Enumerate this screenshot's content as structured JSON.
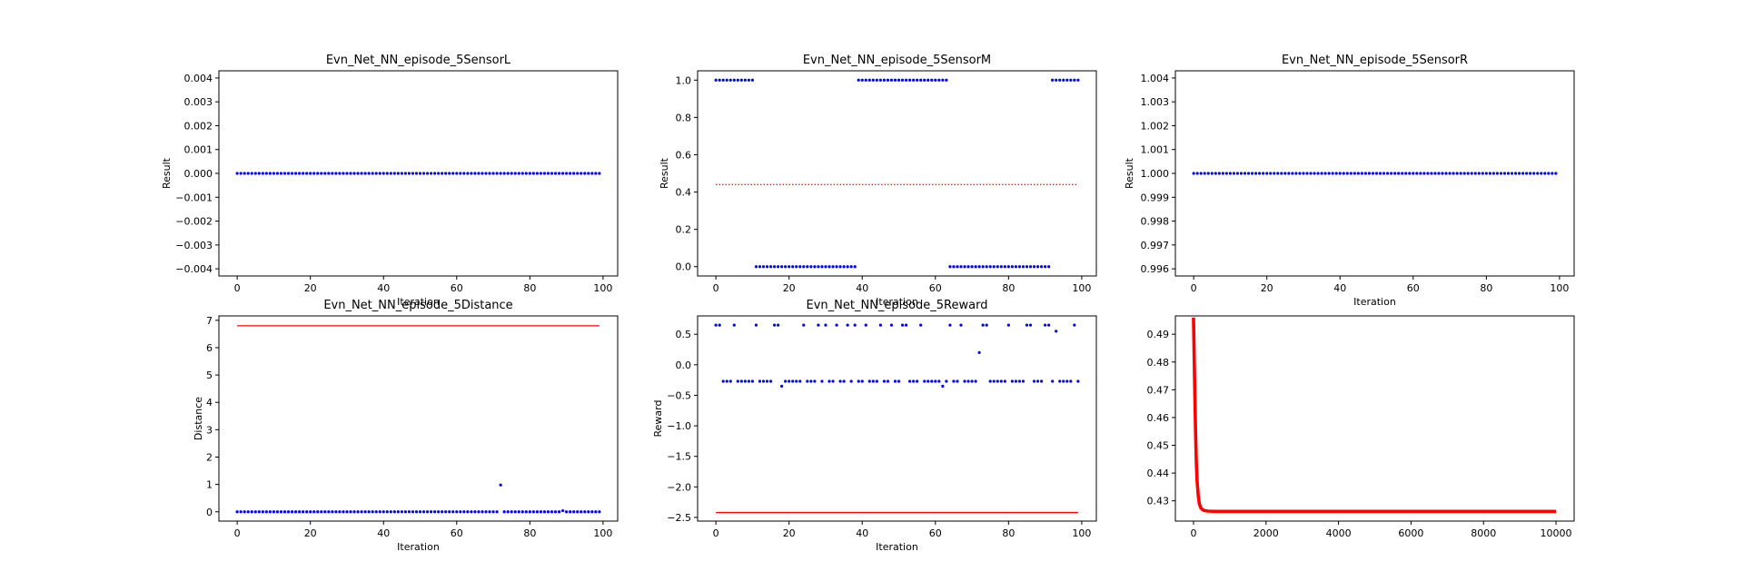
{
  "chart_data": [
    {
      "type": "scatter",
      "title": "Evn_Net_NN_episode_5SensorL",
      "xlabel": "Iteration",
      "ylabel": "Result",
      "xlim": [
        -5,
        104
      ],
      "ylim": [
        -0.0043,
        0.0043
      ],
      "xticks": [
        0,
        20,
        40,
        60,
        80,
        100
      ],
      "yticks": [
        -0.004,
        -0.003,
        -0.002,
        -0.001,
        0.0,
        0.001,
        0.002,
        0.003,
        0.004
      ],
      "ytick_labels": [
        "−0.004",
        "−0.003",
        "−0.002",
        "−0.001",
        "0.000",
        "0.001",
        "0.002",
        "0.003",
        "0.004"
      ],
      "points": {
        "mode": "constant",
        "x_start": 0,
        "x_end": 99,
        "value": 0
      },
      "point_color": "#0000ff"
    },
    {
      "type": "scatter",
      "title": "Evn_Net_NN_episode_5SensorM",
      "xlabel": "Iteration",
      "ylabel": "Result",
      "xlim": [
        -5,
        104
      ],
      "ylim": [
        -0.05,
        1.05
      ],
      "xticks": [
        0,
        20,
        40,
        60,
        80,
        100
      ],
      "yticks": [
        0.0,
        0.2,
        0.4,
        0.6,
        0.8,
        1.0
      ],
      "ytick_labels": [
        "0.0",
        "0.2",
        "0.4",
        "0.6",
        "0.8",
        "1.0"
      ],
      "points": {
        "mode": "segments",
        "segments": [
          {
            "from": 0,
            "to": 10,
            "value": 1
          },
          {
            "from": 11,
            "to": 38,
            "value": 0
          },
          {
            "from": 39,
            "to": 63,
            "value": 1
          },
          {
            "from": 64,
            "to": 91,
            "value": 0
          },
          {
            "from": 92,
            "to": 99,
            "value": 1
          }
        ]
      },
      "hline": {
        "y": 0.44,
        "x_start": 0,
        "x_end": 99,
        "style": "dotted"
      },
      "point_color": "#0000ff",
      "line_color": "#ff0000"
    },
    {
      "type": "scatter",
      "title": "Evn_Net_NN_episode_5SensorR",
      "xlabel": "Iteration",
      "ylabel": "Result",
      "xlim": [
        -5,
        104
      ],
      "ylim": [
        0.9957,
        1.0043
      ],
      "xticks": [
        0,
        20,
        40,
        60,
        80,
        100
      ],
      "yticks": [
        0.996,
        0.997,
        0.998,
        0.999,
        1.0,
        1.001,
        1.002,
        1.003,
        1.004
      ],
      "ytick_labels": [
        "0.996",
        "0.997",
        "0.998",
        "0.999",
        "1.000",
        "1.001",
        "1.002",
        "1.003",
        "1.004"
      ],
      "points": {
        "mode": "constant",
        "x_start": 0,
        "x_end": 99,
        "value": 1
      },
      "point_color": "#0000ff"
    },
    {
      "type": "scatter",
      "title": "Evn_Net_NN_episode_5Distance",
      "xlabel": "Iteration",
      "ylabel": "Distance",
      "xlim": [
        -5,
        104
      ],
      "ylim": [
        -0.34,
        7.16
      ],
      "xticks": [
        0,
        20,
        40,
        60,
        80,
        100
      ],
      "yticks": [
        0,
        1,
        2,
        3,
        4,
        5,
        6,
        7
      ],
      "ytick_labels": [
        "0",
        "1",
        "2",
        "3",
        "4",
        "5",
        "6",
        "7"
      ],
      "points": {
        "mode": "constant_with_overrides",
        "x_start": 0,
        "x_end": 99,
        "value": 0,
        "overrides": [
          {
            "x": 72,
            "y": 0.98
          },
          {
            "x": 89,
            "y": 0.04
          }
        ]
      },
      "hline": {
        "y": 6.8,
        "x_start": 0,
        "x_end": 99,
        "style": "solid"
      },
      "point_color": "#0000ff",
      "line_color": "#ff0000"
    },
    {
      "type": "scatter",
      "title": "Evn_Net_NN_episode_5Reward",
      "xlabel": "Iteration",
      "ylabel": "Reward",
      "xlim": [
        -5,
        104
      ],
      "ylim": [
        -2.56,
        0.8
      ],
      "xticks": [
        0,
        20,
        40,
        60,
        80,
        100
      ],
      "yticks": [
        -2.5,
        -2.0,
        -1.5,
        -1.0,
        -0.5,
        0.0,
        0.5
      ],
      "ytick_labels": [
        "−2.5",
        "−2.0",
        "−1.5",
        "−1.0",
        "−0.5",
        "0.0",
        "0.5"
      ],
      "points": {
        "mode": "list",
        "y": [
          0.65,
          0.65,
          -0.27,
          -0.27,
          -0.27,
          0.65,
          -0.27,
          -0.27,
          -0.27,
          -0.27,
          -0.27,
          0.65,
          -0.27,
          -0.27,
          -0.27,
          -0.27,
          0.65,
          0.65,
          -0.35,
          -0.27,
          -0.27,
          -0.27,
          -0.27,
          -0.27,
          0.65,
          -0.27,
          -0.27,
          -0.27,
          0.65,
          -0.27,
          0.65,
          -0.27,
          -0.27,
          0.65,
          -0.27,
          -0.27,
          0.65,
          -0.27,
          0.65,
          -0.27,
          -0.27,
          0.65,
          -0.27,
          -0.27,
          -0.27,
          0.65,
          -0.27,
          -0.27,
          0.65,
          -0.27,
          -0.27,
          0.65,
          0.65,
          -0.27,
          -0.27,
          -0.27,
          0.65,
          -0.27,
          -0.27,
          -0.27,
          -0.27,
          -0.27,
          -0.35,
          -0.27,
          0.65,
          -0.27,
          -0.27,
          0.65,
          -0.27,
          -0.27,
          -0.27,
          -0.27,
          0.2,
          0.65,
          0.65,
          -0.27,
          -0.27,
          -0.27,
          -0.27,
          -0.27,
          0.65,
          -0.27,
          -0.27,
          -0.27,
          -0.27,
          0.65,
          0.65,
          -0.27,
          -0.27,
          -0.27,
          0.65,
          0.65,
          -0.27,
          0.55,
          -0.27,
          -0.27,
          -0.27,
          -0.27,
          0.65,
          -0.27
        ]
      },
      "hline": {
        "y": -2.42,
        "x_start": 0,
        "x_end": 99,
        "style": "solid"
      },
      "point_color": "#0000ff",
      "line_color": "#ff0000"
    },
    {
      "type": "line",
      "title": "",
      "xlabel": "",
      "ylabel": "",
      "xlim": [
        -500,
        10500
      ],
      "ylim": [
        0.4227,
        0.4966
      ],
      "xticks": [
        0,
        2000,
        4000,
        6000,
        8000,
        10000
      ],
      "yticks": [
        0.43,
        0.44,
        0.45,
        0.46,
        0.47,
        0.48,
        0.49
      ],
      "ytick_labels": [
        "0.43",
        "0.44",
        "0.45",
        "0.46",
        "0.47",
        "0.48",
        "0.49"
      ],
      "series": [
        {
          "x": [
            0,
            20,
            40,
            60,
            80,
            100,
            130,
            160,
            200,
            250,
            300,
            400,
            600,
            1000,
            2000,
            4000,
            6000,
            8000,
            10000
          ],
          "y": [
            0.496,
            0.481,
            0.466,
            0.453,
            0.443,
            0.437,
            0.432,
            0.429,
            0.4275,
            0.4268,
            0.4265,
            0.4263,
            0.4262,
            0.4262,
            0.4262,
            0.4262,
            0.4262,
            0.4262,
            0.4262
          ]
        }
      ],
      "line_color": "#ff0000"
    }
  ]
}
